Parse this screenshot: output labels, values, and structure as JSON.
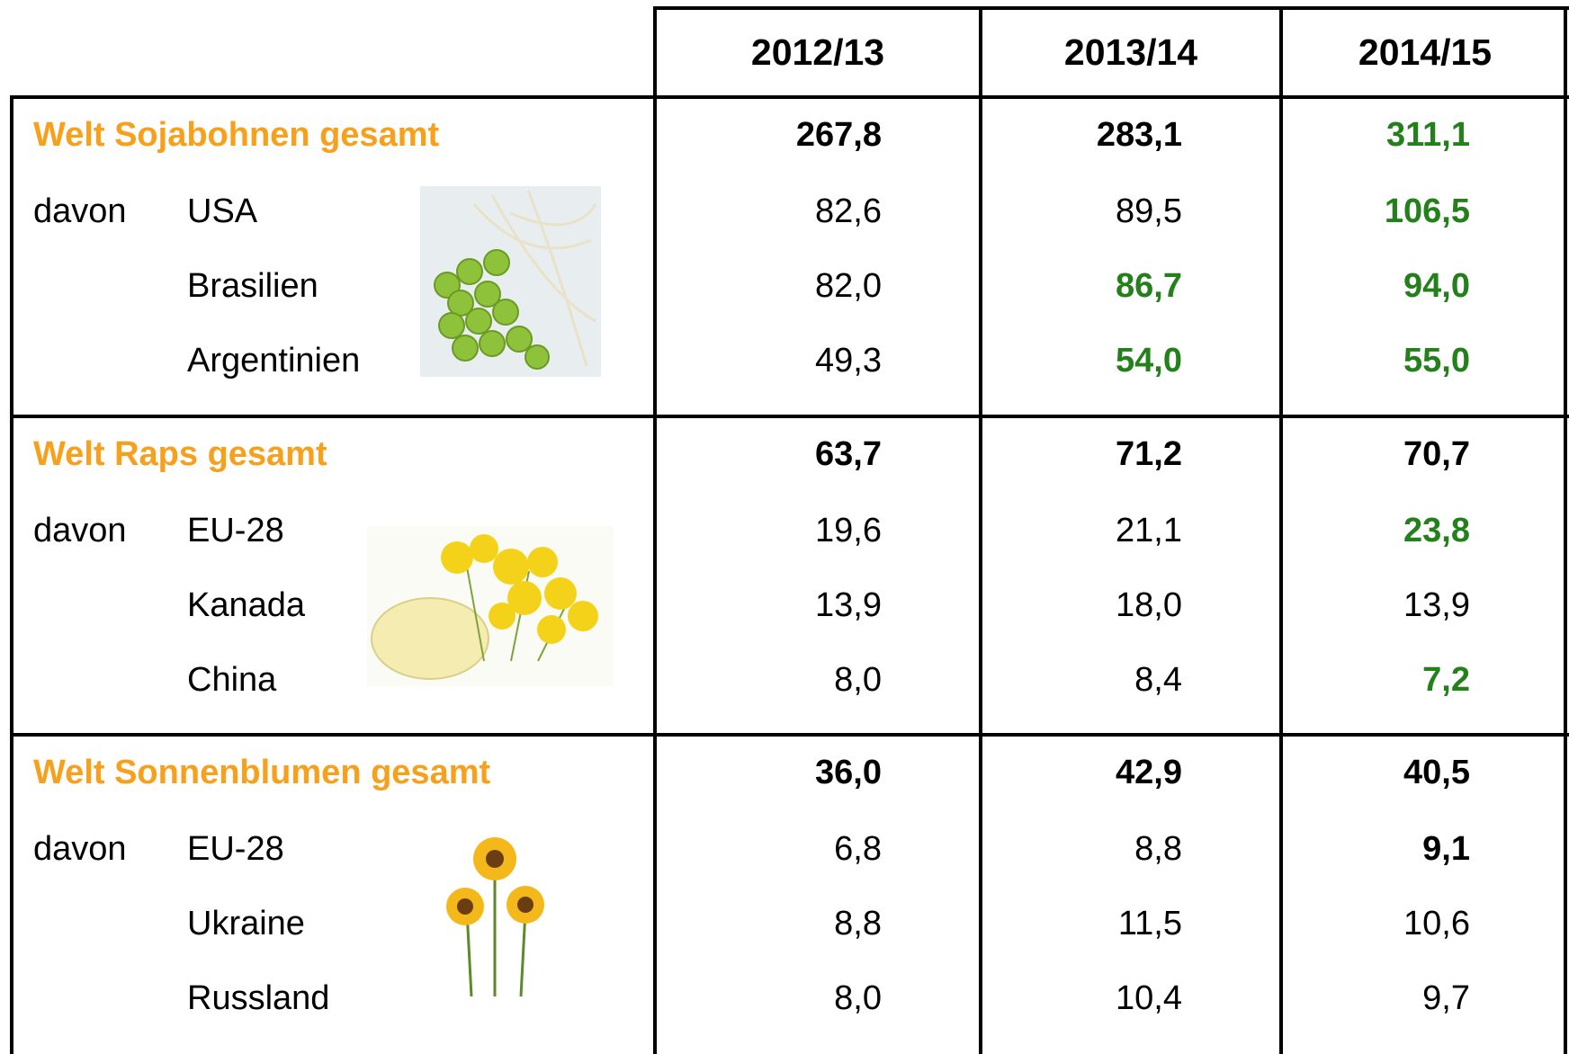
{
  "table": {
    "header": [
      "2012/13",
      "2013/14",
      "2014/15"
    ],
    "sections": [
      {
        "title": "Welt Sojabohnen gesamt",
        "totals": [
          {
            "text": "267,8",
            "bold": true
          },
          {
            "text": "283,1",
            "bold": true
          },
          {
            "text": "311,1",
            "bold": true,
            "color": "#23801a"
          }
        ],
        "rows": [
          {
            "prefix": "davon",
            "label": "USA",
            "cells": [
              {
                "text": "82,6"
              },
              {
                "text": "89,5"
              },
              {
                "text": "106,5",
                "bold": true,
                "color": "#23801a"
              }
            ]
          },
          {
            "label": "Brasilien",
            "cells": [
              {
                "text": "82,0"
              },
              {
                "text": "86,7",
                "bold": true,
                "color": "#23801a"
              },
              {
                "text": "94,0",
                "bold": true,
                "color": "#23801a"
              }
            ]
          },
          {
            "label": "Argentinien",
            "cells": [
              {
                "text": "49,3"
              },
              {
                "text": "54,0",
                "bold": true,
                "color": "#23801a"
              },
              {
                "text": "55,0",
                "bold": true,
                "color": "#23801a"
              }
            ]
          }
        ]
      },
      {
        "title": "Welt Raps gesamt",
        "totals": [
          {
            "text": "63,7",
            "bold": true
          },
          {
            "text": "71,2",
            "bold": true
          },
          {
            "text": "70,7",
            "bold": true
          }
        ],
        "rows": [
          {
            "prefix": "davon",
            "label": "EU-28",
            "cells": [
              {
                "text": "19,6"
              },
              {
                "text": "21,1"
              },
              {
                "text": "23,8",
                "bold": true,
                "color": "#23801a"
              }
            ]
          },
          {
            "label": "Kanada",
            "cells": [
              {
                "text": "13,9"
              },
              {
                "text": "18,0"
              },
              {
                "text": "13,9"
              }
            ]
          },
          {
            "label": "China",
            "cells": [
              {
                "text": "8,0"
              },
              {
                "text": "8,4"
              },
              {
                "text": "7,2",
                "bold": true,
                "color": "#23801a"
              }
            ]
          }
        ]
      },
      {
        "title": "Welt Sonnenblumen gesamt",
        "totals": [
          {
            "text": "36,0",
            "bold": true
          },
          {
            "text": "42,9",
            "bold": true
          },
          {
            "text": "40,5",
            "bold": true
          }
        ],
        "rows": [
          {
            "prefix": "davon",
            "label": "EU-28",
            "cells": [
              {
                "text": "6,8"
              },
              {
                "text": "8,8"
              },
              {
                "text": "9,1",
                "bold": true
              }
            ]
          },
          {
            "label": "Ukraine",
            "cells": [
              {
                "text": "8,8"
              },
              {
                "text": "11,5"
              },
              {
                "text": "10,6"
              }
            ]
          },
          {
            "label": "Russland",
            "cells": [
              {
                "text": "8,0"
              },
              {
                "text": "10,4"
              },
              {
                "text": "9,7"
              }
            ]
          }
        ]
      }
    ]
  }
}
